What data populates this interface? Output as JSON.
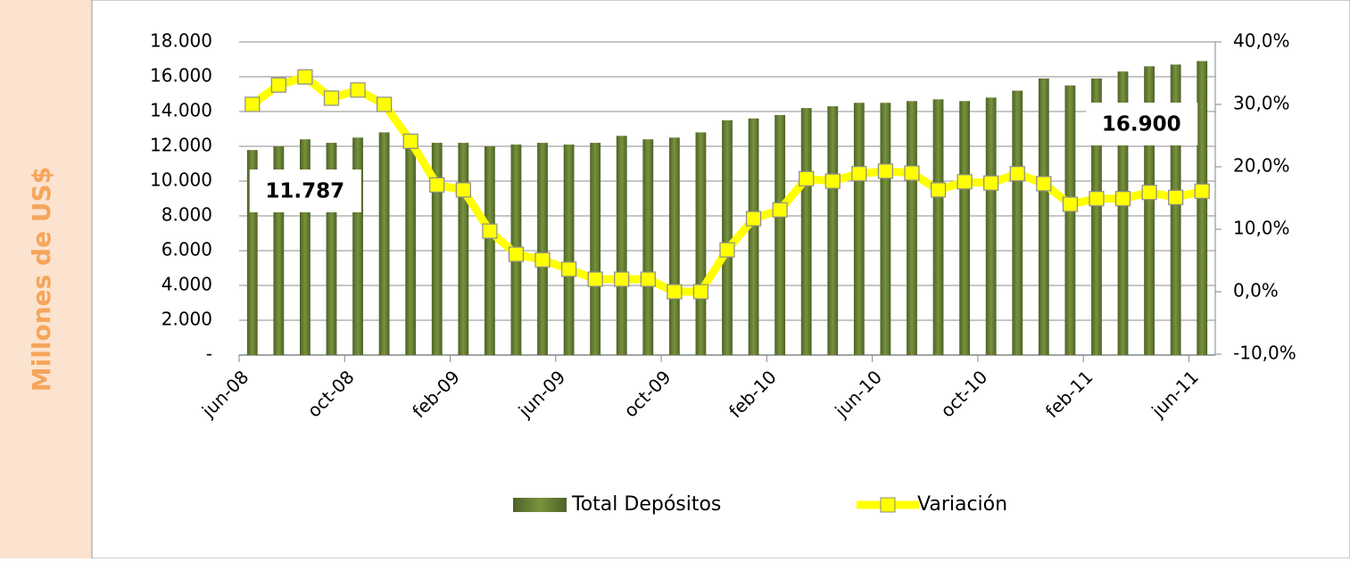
{
  "chart_data": {
    "type": "bar_line",
    "y_label": "Millones de US$",
    "categories": [
      "jun-08",
      null,
      null,
      null,
      "oct-08",
      null,
      null,
      null,
      "feb-09",
      null,
      null,
      null,
      "jun-09",
      null,
      null,
      null,
      "oct-09",
      null,
      null,
      null,
      "feb-10",
      null,
      null,
      null,
      "jun-10",
      null,
      null,
      null,
      "oct-10",
      null,
      null,
      null,
      "feb-11",
      null,
      null,
      null,
      "jun-11"
    ],
    "series": [
      {
        "name": "Total Depósitos",
        "type": "bar",
        "color": "#77933c",
        "values": [
          11787,
          12000,
          12400,
          12200,
          12500,
          12800,
          12500,
          12200,
          12200,
          12000,
          12100,
          12200,
          12100,
          12200,
          12600,
          12400,
          12500,
          12800,
          13500,
          13600,
          13800,
          14200,
          14300,
          14500,
          14500,
          14600,
          14700,
          14600,
          14800,
          15200,
          15900,
          15500,
          15900,
          16300,
          16600,
          16700,
          16900
        ],
        "value_labels": [
          "11.787",
          null,
          null,
          null,
          null,
          null,
          null,
          null,
          null,
          null,
          null,
          null,
          null,
          null,
          null,
          null,
          null,
          null,
          null,
          null,
          null,
          null,
          null,
          null,
          null,
          null,
          null,
          null,
          null,
          null,
          null,
          null,
          null,
          null,
          null,
          null,
          "16.900"
        ]
      },
      {
        "name": "Variación",
        "type": "line",
        "axis": "y2",
        "color": "#ffff00",
        "values": [
          30.0,
          33.1,
          34.4,
          31.0,
          32.3,
          30.0,
          24.1,
          17.1,
          16.3,
          9.7,
          6.0,
          5.1,
          3.6,
          2.0,
          2.0,
          2.0,
          0.0,
          0.0,
          6.7,
          11.7,
          13.1,
          18.1,
          17.7,
          18.9,
          19.3,
          19.0,
          16.3,
          17.6,
          17.4,
          18.9,
          17.3,
          14.0,
          14.9,
          14.9,
          15.9,
          15.1,
          16.1
        ]
      }
    ],
    "ylim": [
      0,
      18000
    ],
    "yticks": [
      {
        "value": 0,
        "label": "-"
      },
      {
        "value": 2000,
        "label": "2.000"
      },
      {
        "value": 4000,
        "label": "4.000"
      },
      {
        "value": 6000,
        "label": "6.000"
      },
      {
        "value": 8000,
        "label": "8.000"
      },
      {
        "value": 10000,
        "label": "10.000"
      },
      {
        "value": 12000,
        "label": "12.000"
      },
      {
        "value": 14000,
        "label": "14.000"
      },
      {
        "value": 16000,
        "label": "16.000"
      },
      {
        "value": 18000,
        "label": "18.000"
      }
    ],
    "y2lim": [
      -10,
      40
    ],
    "y2ticks": [
      {
        "value": -10,
        "label": "-10,0%"
      },
      {
        "value": 0,
        "label": "0,0%"
      },
      {
        "value": 10,
        "label": "10,0%"
      },
      {
        "value": 20,
        "label": "20,0%"
      },
      {
        "value": 30,
        "label": "30,0%"
      },
      {
        "value": 40,
        "label": "40,0%"
      }
    ],
    "grid": true,
    "legend": "bottom"
  }
}
